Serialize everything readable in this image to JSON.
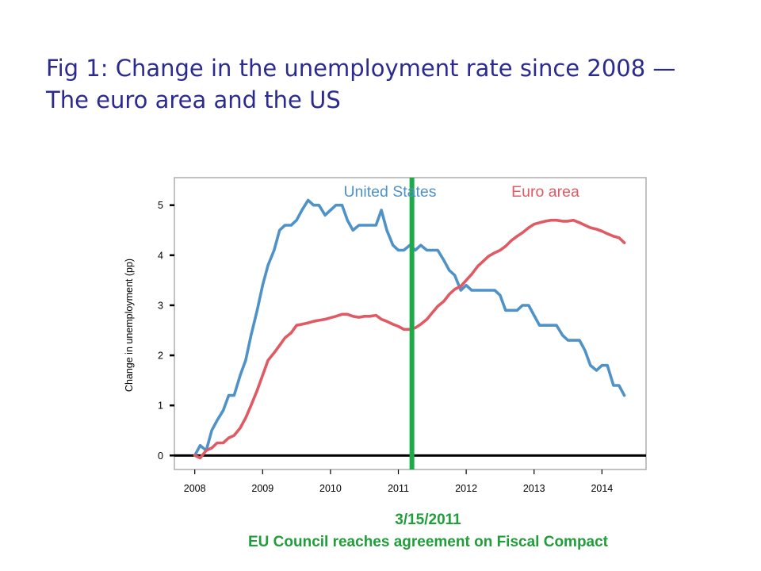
{
  "slide": {
    "title_line1": "Fig 1: Change in the unemployment rate since 2008 —",
    "title_line2": "The euro area and the US",
    "colors": {
      "title": "#2b2b8f",
      "annotation": "#1f9e3a"
    }
  },
  "annotation": {
    "date": "3/15/2011",
    "text": "EU Council reaches agreement on Fiscal Compact",
    "x": 2011.2,
    "color": "#1faa4a"
  },
  "chart_data": {
    "type": "line",
    "title": "",
    "xlabel": "",
    "ylabel": "Change in unemployment (pp)",
    "xlim": [
      2007.7,
      2014.65
    ],
    "ylim": [
      -0.28,
      5.55
    ],
    "xticks": [
      2008,
      2009,
      2010,
      2011,
      2012,
      2013,
      2014
    ],
    "yticks": [
      0,
      1,
      2,
      3,
      4,
      5
    ],
    "grid": false,
    "baseline": 0,
    "series": [
      {
        "name": "United States",
        "color": "#4f92c8",
        "points": [
          [
            2008.0,
            0.0
          ],
          [
            2008.08,
            0.2
          ],
          [
            2008.17,
            0.1
          ],
          [
            2008.25,
            0.5
          ],
          [
            2008.33,
            0.7
          ],
          [
            2008.42,
            0.9
          ],
          [
            2008.5,
            1.2
          ],
          [
            2008.58,
            1.2
          ],
          [
            2008.67,
            1.6
          ],
          [
            2008.75,
            1.9
          ],
          [
            2008.83,
            2.4
          ],
          [
            2008.92,
            2.9
          ],
          [
            2009.0,
            3.4
          ],
          [
            2009.08,
            3.8
          ],
          [
            2009.17,
            4.1
          ],
          [
            2009.25,
            4.5
          ],
          [
            2009.33,
            4.6
          ],
          [
            2009.42,
            4.6
          ],
          [
            2009.5,
            4.7
          ],
          [
            2009.58,
            4.9
          ],
          [
            2009.67,
            5.1
          ],
          [
            2009.75,
            5.0
          ],
          [
            2009.83,
            5.0
          ],
          [
            2009.92,
            4.8
          ],
          [
            2010.0,
            4.9
          ],
          [
            2010.08,
            5.0
          ],
          [
            2010.17,
            5.0
          ],
          [
            2010.25,
            4.7
          ],
          [
            2010.33,
            4.5
          ],
          [
            2010.42,
            4.6
          ],
          [
            2010.5,
            4.6
          ],
          [
            2010.58,
            4.6
          ],
          [
            2010.67,
            4.6
          ],
          [
            2010.75,
            4.9
          ],
          [
            2010.83,
            4.5
          ],
          [
            2010.92,
            4.2
          ],
          [
            2011.0,
            4.1
          ],
          [
            2011.08,
            4.1
          ],
          [
            2011.17,
            4.2
          ],
          [
            2011.25,
            4.1
          ],
          [
            2011.33,
            4.2
          ],
          [
            2011.42,
            4.1
          ],
          [
            2011.5,
            4.1
          ],
          [
            2011.58,
            4.1
          ],
          [
            2011.67,
            3.9
          ],
          [
            2011.75,
            3.7
          ],
          [
            2011.83,
            3.6
          ],
          [
            2011.92,
            3.3
          ],
          [
            2012.0,
            3.4
          ],
          [
            2012.08,
            3.3
          ],
          [
            2012.17,
            3.3
          ],
          [
            2012.25,
            3.3
          ],
          [
            2012.33,
            3.3
          ],
          [
            2012.42,
            3.3
          ],
          [
            2012.5,
            3.2
          ],
          [
            2012.58,
            2.9
          ],
          [
            2012.67,
            2.9
          ],
          [
            2012.75,
            2.9
          ],
          [
            2012.83,
            3.0
          ],
          [
            2012.92,
            3.0
          ],
          [
            2013.0,
            2.8
          ],
          [
            2013.08,
            2.6
          ],
          [
            2013.17,
            2.6
          ],
          [
            2013.25,
            2.6
          ],
          [
            2013.33,
            2.6
          ],
          [
            2013.42,
            2.4
          ],
          [
            2013.5,
            2.3
          ],
          [
            2013.58,
            2.3
          ],
          [
            2013.67,
            2.3
          ],
          [
            2013.75,
            2.1
          ],
          [
            2013.83,
            1.8
          ],
          [
            2013.92,
            1.7
          ],
          [
            2014.0,
            1.8
          ],
          [
            2014.08,
            1.8
          ],
          [
            2014.17,
            1.4
          ],
          [
            2014.25,
            1.4
          ],
          [
            2014.33,
            1.2
          ]
        ]
      },
      {
        "name": "Euro area",
        "color": "#e05a63",
        "points": [
          [
            2008.0,
            0.0
          ],
          [
            2008.08,
            -0.05
          ],
          [
            2008.17,
            0.1
          ],
          [
            2008.25,
            0.15
          ],
          [
            2008.33,
            0.25
          ],
          [
            2008.42,
            0.25
          ],
          [
            2008.5,
            0.35
          ],
          [
            2008.58,
            0.4
          ],
          [
            2008.67,
            0.55
          ],
          [
            2008.75,
            0.75
          ],
          [
            2008.83,
            1.0
          ],
          [
            2008.92,
            1.3
          ],
          [
            2009.0,
            1.6
          ],
          [
            2009.08,
            1.9
          ],
          [
            2009.17,
            2.05
          ],
          [
            2009.25,
            2.2
          ],
          [
            2009.33,
            2.35
          ],
          [
            2009.42,
            2.45
          ],
          [
            2009.5,
            2.6
          ],
          [
            2009.58,
            2.62
          ],
          [
            2009.67,
            2.65
          ],
          [
            2009.75,
            2.68
          ],
          [
            2009.83,
            2.7
          ],
          [
            2009.92,
            2.72
          ],
          [
            2010.0,
            2.75
          ],
          [
            2010.08,
            2.78
          ],
          [
            2010.17,
            2.82
          ],
          [
            2010.25,
            2.82
          ],
          [
            2010.33,
            2.78
          ],
          [
            2010.42,
            2.76
          ],
          [
            2010.5,
            2.78
          ],
          [
            2010.58,
            2.78
          ],
          [
            2010.67,
            2.8
          ],
          [
            2010.75,
            2.72
          ],
          [
            2010.83,
            2.68
          ],
          [
            2010.92,
            2.62
          ],
          [
            2011.0,
            2.58
          ],
          [
            2011.08,
            2.52
          ],
          [
            2011.17,
            2.52
          ],
          [
            2011.25,
            2.55
          ],
          [
            2011.33,
            2.62
          ],
          [
            2011.42,
            2.72
          ],
          [
            2011.5,
            2.85
          ],
          [
            2011.58,
            2.98
          ],
          [
            2011.67,
            3.08
          ],
          [
            2011.75,
            3.22
          ],
          [
            2011.83,
            3.32
          ],
          [
            2011.92,
            3.38
          ],
          [
            2012.0,
            3.5
          ],
          [
            2012.08,
            3.62
          ],
          [
            2012.17,
            3.78
          ],
          [
            2012.25,
            3.88
          ],
          [
            2012.33,
            3.98
          ],
          [
            2012.42,
            4.05
          ],
          [
            2012.5,
            4.1
          ],
          [
            2012.58,
            4.18
          ],
          [
            2012.67,
            4.3
          ],
          [
            2012.75,
            4.38
          ],
          [
            2012.83,
            4.45
          ],
          [
            2012.92,
            4.55
          ],
          [
            2013.0,
            4.62
          ],
          [
            2013.08,
            4.65
          ],
          [
            2013.17,
            4.68
          ],
          [
            2013.25,
            4.7
          ],
          [
            2013.33,
            4.7
          ],
          [
            2013.42,
            4.68
          ],
          [
            2013.5,
            4.68
          ],
          [
            2013.58,
            4.7
          ],
          [
            2013.67,
            4.65
          ],
          [
            2013.75,
            4.6
          ],
          [
            2013.83,
            4.55
          ],
          [
            2013.92,
            4.52
          ],
          [
            2014.0,
            4.48
          ],
          [
            2014.08,
            4.43
          ],
          [
            2014.17,
            4.38
          ],
          [
            2014.25,
            4.35
          ],
          [
            2014.33,
            4.25
          ]
        ]
      }
    ],
    "legend": "inline-top"
  }
}
